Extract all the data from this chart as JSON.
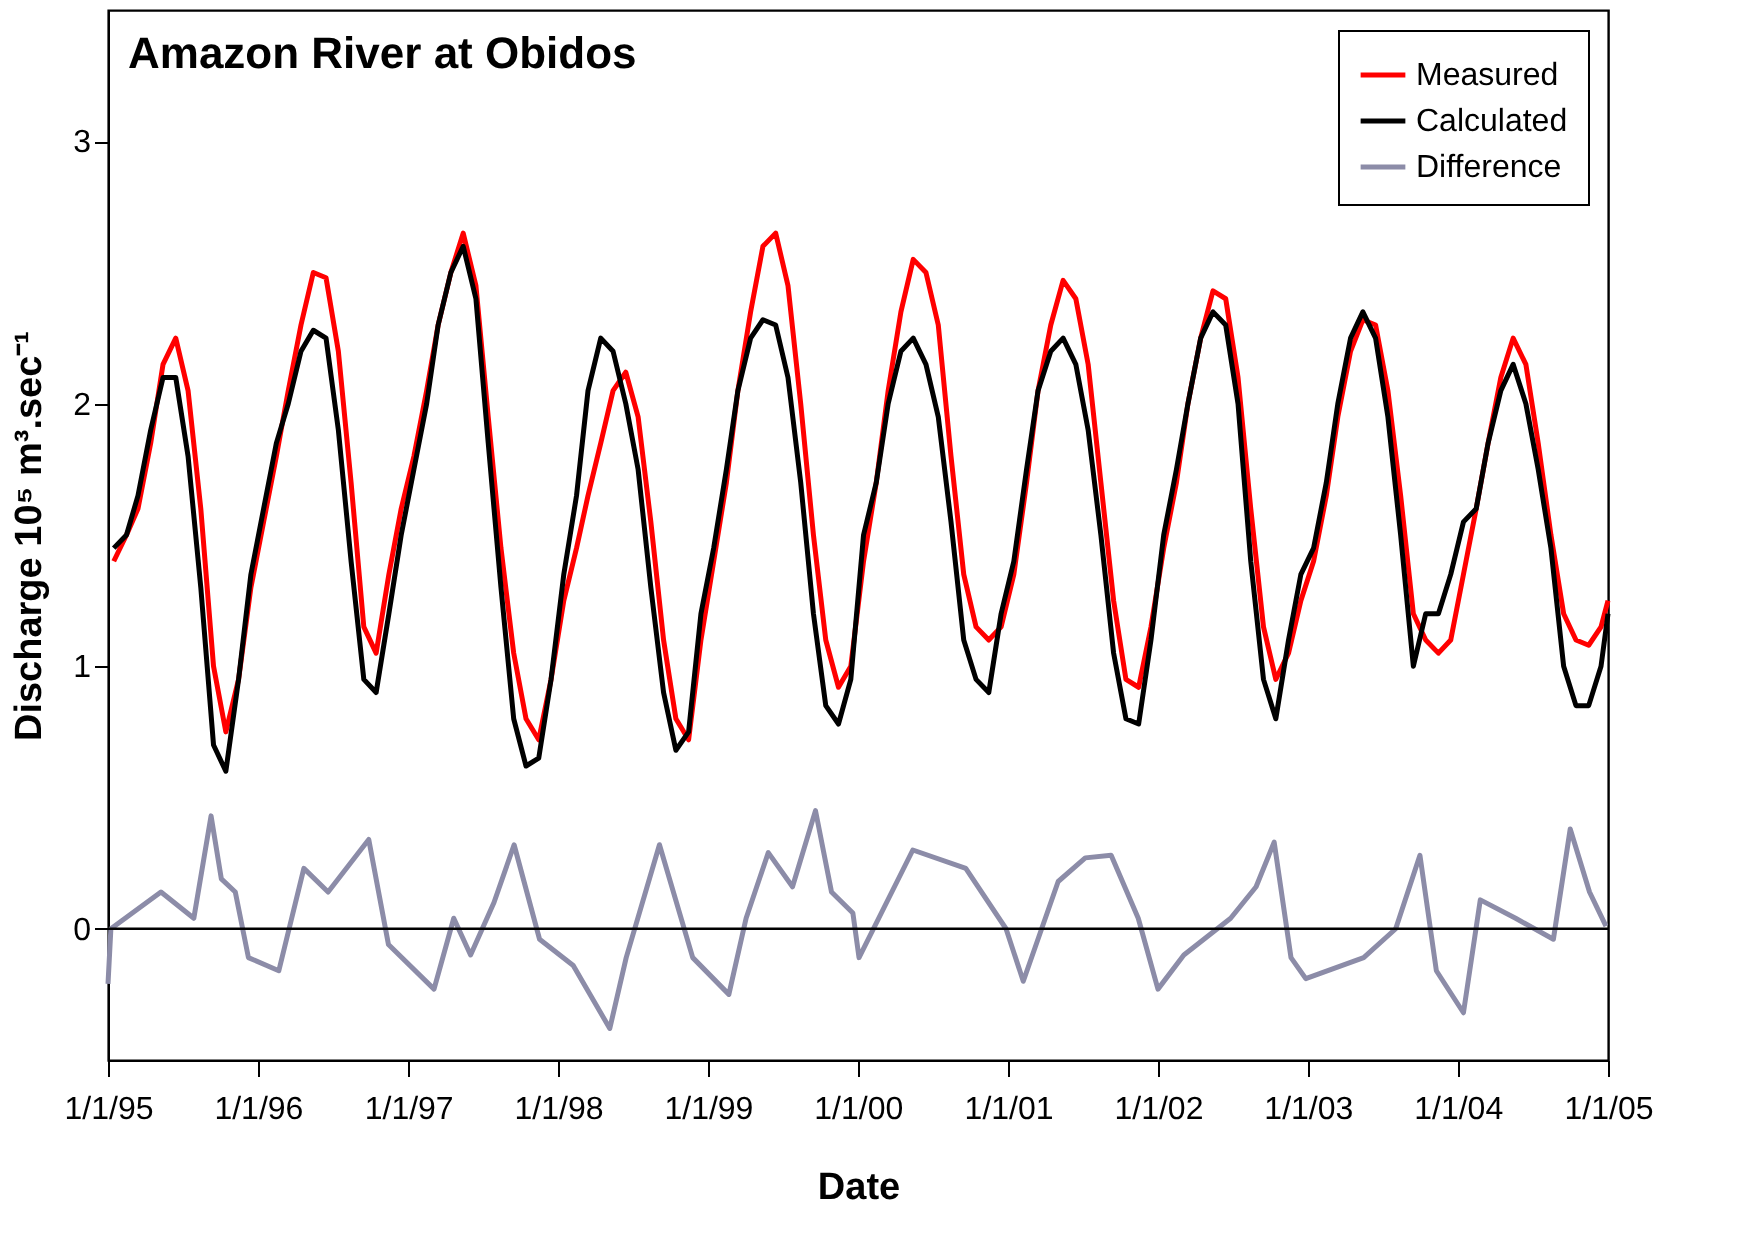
{
  "chart_data": {
    "type": "line",
    "title": "Amazon River at Obidos",
    "xlabel": "Date",
    "ylabel": "Discharge 10⁵ m³.sec⁻¹",
    "x": [
      "1995-01-15",
      "1995-02-15",
      "1995-03-15",
      "1995-04-15",
      "1995-05-15",
      "1995-06-15",
      "1995-07-15",
      "1995-08-15",
      "1995-09-15",
      "1995-10-15",
      "1995-11-15",
      "1995-12-15",
      "1996-01-15",
      "1996-02-15",
      "1996-03-15",
      "1996-04-15",
      "1996-05-15",
      "1996-06-15",
      "1996-07-15",
      "1996-08-15",
      "1996-09-15",
      "1996-10-15",
      "1996-11-15",
      "1996-12-15",
      "1997-01-15",
      "1997-02-15",
      "1997-03-15",
      "1997-04-15",
      "1997-05-15",
      "1997-06-15",
      "1997-07-15",
      "1997-08-15",
      "1997-09-15",
      "1997-10-15",
      "1997-11-15",
      "1997-12-15",
      "1998-01-15",
      "1998-02-15",
      "1998-03-15",
      "1998-04-15",
      "1998-05-15",
      "1998-06-15",
      "1998-07-15",
      "1998-08-15",
      "1998-09-15",
      "1998-10-15",
      "1998-11-15",
      "1998-12-15",
      "1999-01-15",
      "1999-02-15",
      "1999-03-15",
      "1999-04-15",
      "1999-05-15",
      "1999-06-15",
      "1999-07-15",
      "1999-08-15",
      "1999-09-15",
      "1999-10-15",
      "1999-11-15",
      "1999-12-15",
      "2000-01-15",
      "2000-02-15",
      "2000-03-15",
      "2000-04-15",
      "2000-05-15",
      "2000-06-15",
      "2000-07-15",
      "2000-08-15",
      "2000-09-15",
      "2000-10-15",
      "2000-11-15",
      "2000-12-15",
      "2001-01-15",
      "2001-02-15",
      "2001-03-15",
      "2001-04-15",
      "2001-05-15",
      "2001-06-15",
      "2001-07-15",
      "2001-08-15",
      "2001-09-15",
      "2001-10-15",
      "2001-11-15",
      "2001-12-15",
      "2002-01-15",
      "2002-02-15",
      "2002-03-15",
      "2002-04-15",
      "2002-05-15",
      "2002-06-15",
      "2002-07-15",
      "2002-08-15",
      "2002-09-15",
      "2002-10-15",
      "2002-11-15",
      "2002-12-15",
      "2003-01-15",
      "2003-02-15",
      "2003-03-15",
      "2003-04-15",
      "2003-05-15",
      "2003-06-15",
      "2003-07-15",
      "2003-08-15",
      "2003-09-15",
      "2003-10-15",
      "2003-11-15",
      "2003-12-15",
      "2004-01-15",
      "2004-02-15",
      "2004-03-15",
      "2004-04-15",
      "2004-05-15",
      "2004-06-15",
      "2004-07-15",
      "2004-08-15",
      "2004-09-15",
      "2004-10-15",
      "2004-11-15",
      "2004-12-15",
      "2005-01-01"
    ],
    "series": [
      {
        "name": "Measured",
        "color": "#ff0000",
        "values": [
          1.4,
          1.5,
          1.6,
          1.85,
          2.15,
          2.25,
          2.05,
          1.6,
          1.0,
          0.75,
          0.95,
          1.3,
          1.55,
          1.8,
          2.05,
          2.3,
          2.5,
          2.48,
          2.2,
          1.7,
          1.15,
          1.05,
          1.35,
          1.6,
          1.8,
          2.05,
          2.3,
          2.5,
          2.65,
          2.45,
          1.95,
          1.45,
          1.05,
          0.8,
          0.72,
          0.95,
          1.25,
          1.45,
          1.65,
          1.85,
          2.05,
          2.12,
          1.95,
          1.55,
          1.1,
          0.8,
          0.72,
          1.1,
          1.4,
          1.7,
          2.05,
          2.35,
          2.6,
          2.65,
          2.45,
          2.0,
          1.5,
          1.1,
          0.92,
          1.0,
          1.4,
          1.7,
          2.05,
          2.35,
          2.55,
          2.5,
          2.3,
          1.8,
          1.35,
          1.15,
          1.1,
          1.15,
          1.35,
          1.7,
          2.05,
          2.3,
          2.47,
          2.4,
          2.15,
          1.7,
          1.25,
          0.95,
          0.92,
          1.15,
          1.45,
          1.7,
          2.0,
          2.25,
          2.43,
          2.4,
          2.1,
          1.6,
          1.15,
          0.95,
          1.05,
          1.25,
          1.4,
          1.65,
          1.95,
          2.2,
          2.32,
          2.3,
          2.05,
          1.65,
          1.2,
          1.1,
          1.05,
          1.1,
          1.35,
          1.6,
          1.85,
          2.1,
          2.25,
          2.15,
          1.85,
          1.5,
          1.2,
          1.1,
          1.08,
          1.15,
          1.25
        ]
      },
      {
        "name": "Calculated",
        "color": "#000000",
        "values": [
          1.45,
          1.5,
          1.65,
          1.9,
          2.1,
          2.1,
          1.8,
          1.3,
          0.7,
          0.6,
          0.95,
          1.35,
          1.6,
          1.85,
          2.0,
          2.2,
          2.28,
          2.25,
          1.9,
          1.4,
          0.95,
          0.9,
          1.2,
          1.5,
          1.75,
          2.0,
          2.3,
          2.5,
          2.6,
          2.4,
          1.85,
          1.3,
          0.8,
          0.62,
          0.65,
          0.95,
          1.35,
          1.65,
          2.05,
          2.25,
          2.2,
          2.0,
          1.75,
          1.3,
          0.9,
          0.68,
          0.75,
          1.2,
          1.45,
          1.75,
          2.05,
          2.25,
          2.32,
          2.3,
          2.1,
          1.7,
          1.2,
          0.85,
          0.78,
          0.95,
          1.5,
          1.7,
          2.0,
          2.2,
          2.25,
          2.15,
          1.95,
          1.55,
          1.1,
          0.95,
          0.9,
          1.2,
          1.4,
          1.75,
          2.05,
          2.2,
          2.25,
          2.15,
          1.9,
          1.5,
          1.05,
          0.8,
          0.78,
          1.1,
          1.5,
          1.75,
          2.0,
          2.25,
          2.35,
          2.3,
          2.0,
          1.4,
          0.95,
          0.8,
          1.1,
          1.35,
          1.45,
          1.7,
          2.0,
          2.25,
          2.35,
          2.25,
          1.95,
          1.5,
          1.0,
          1.2,
          1.2,
          1.35,
          1.55,
          1.6,
          1.85,
          2.05,
          2.15,
          2.0,
          1.75,
          1.45,
          1.0,
          0.85,
          0.85,
          1.0,
          1.2
        ]
      },
      {
        "name": "Difference",
        "color": "#8c8ca8",
        "x": [
          "1995-01-01",
          "1995-01-08",
          "1995-05-10",
          "1995-07-29",
          "1995-09-09",
          "1995-10-04",
          "1995-11-07",
          "1995-12-09",
          "1996-02-21",
          "1996-04-22",
          "1996-06-20",
          "1996-09-27",
          "1996-11-14",
          "1997-03-05",
          "1997-04-22",
          "1997-06-02",
          "1997-07-29",
          "1997-09-16",
          "1997-11-17",
          "1998-02-07",
          "1998-05-07",
          "1998-06-16",
          "1998-09-05",
          "1998-11-25",
          "1999-02-21",
          "1999-04-04",
          "1999-05-28",
          "1999-07-26",
          "1999-09-20",
          "1999-10-29",
          "1999-12-20",
          "2000-01-04",
          "2000-05-14",
          "2000-09-20",
          "2000-12-27",
          "2001-02-07",
          "2001-05-03",
          "2001-07-08",
          "2001-09-09",
          "2001-11-14",
          "2002-01-01",
          "2002-03-05",
          "2002-06-27",
          "2002-08-28",
          "2002-10-11",
          "2002-11-21",
          "2002-12-27",
          "2003-05-17",
          "2003-08-03",
          "2003-10-01",
          "2003-11-10",
          "2004-01-15",
          "2004-02-25",
          "2004-05-21",
          "2004-08-21",
          "2004-10-01",
          "2004-11-17",
          "2004-12-27"
        ],
        "values": [
          -0.21,
          0.0,
          0.14,
          0.04,
          0.43,
          0.19,
          0.14,
          -0.11,
          -0.16,
          0.23,
          0.14,
          0.34,
          -0.06,
          -0.23,
          0.04,
          -0.1,
          0.1,
          0.32,
          -0.04,
          -0.14,
          -0.38,
          -0.11,
          0.32,
          -0.11,
          -0.25,
          0.04,
          0.29,
          0.16,
          0.45,
          0.14,
          0.06,
          -0.11,
          0.3,
          0.23,
          0.0,
          -0.2,
          0.18,
          0.27,
          0.28,
          0.04,
          -0.23,
          -0.1,
          0.04,
          0.16,
          0.33,
          -0.11,
          -0.19,
          -0.11,
          0.0,
          0.28,
          -0.16,
          -0.32,
          0.11,
          0.04,
          -0.04,
          0.38,
          0.14,
          0.01
        ]
      }
    ],
    "xlim": [
      "1995-01-01",
      "2005-01-01"
    ],
    "xticks": [
      {
        "value": "1995-01-01",
        "label": "1/1/95"
      },
      {
        "value": "1996-01-01",
        "label": "1/1/96"
      },
      {
        "value": "1997-01-01",
        "label": "1/1/97"
      },
      {
        "value": "1998-01-01",
        "label": "1/1/98"
      },
      {
        "value": "1999-01-01",
        "label": "1/1/99"
      },
      {
        "value": "2000-01-01",
        "label": "1/1/00"
      },
      {
        "value": "2001-01-01",
        "label": "1/1/01"
      },
      {
        "value": "2002-01-01",
        "label": "1/1/02"
      },
      {
        "value": "2003-01-01",
        "label": "1/1/03"
      },
      {
        "value": "2004-01-01",
        "label": "1/1/04"
      },
      {
        "value": "2005-01-01",
        "label": "1/1/05"
      }
    ],
    "ylim": [
      -0.5,
      3.5
    ],
    "yticks": [
      0,
      1,
      2,
      3
    ],
    "ref_lines": [
      {
        "axis": "y",
        "value": 0,
        "label": null,
        "color": "#000000"
      }
    ],
    "grid": false,
    "legend": "top right",
    "line_style": "solid",
    "marker": "none"
  }
}
